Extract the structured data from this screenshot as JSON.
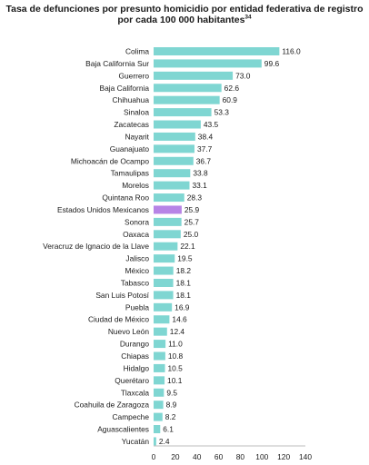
{
  "chart_data": {
    "type": "bar",
    "orientation": "horizontal",
    "title_line1": "Tasa de defunciones por presunto homicidio por entidad federativa de registro",
    "title_line2": "por cada 100 000 habitantes",
    "title_superscript": "34",
    "xlabel": "",
    "ylabel": "",
    "xlim": [
      0,
      140
    ],
    "xticks": [
      0,
      20,
      40,
      60,
      80,
      100,
      120,
      140
    ],
    "grid": false,
    "legend": "none",
    "colors": {
      "bar": "#7fd6d2",
      "highlight": "#b784e6"
    },
    "highlight_category": "Estados Unidos Mexicanos",
    "categories": [
      "Colima",
      "Baja California Sur",
      "Guerrero",
      "Baja California",
      "Chihuahua",
      "Sinaloa",
      "Zacatecas",
      "Nayarit",
      "Guanajuato",
      "Michoacán de Ocampo",
      "Tamaulipas",
      "Morelos",
      "Quintana Roo",
      "Estados Unidos Mexicanos",
      "Sonora",
      "Oaxaca",
      "Veracruz de Ignacio de la Llave",
      "Jalisco",
      "México",
      "Tabasco",
      "San Luis Potosí",
      "Puebla",
      "Ciudad de México",
      "Nuevo León",
      "Durango",
      "Chiapas",
      "Hidalgo",
      "Querétaro",
      "Tlaxcala",
      "Coahuila de Zaragoza",
      "Campeche",
      "Aguascalientes",
      "Yucatán"
    ],
    "values": [
      116.0,
      99.6,
      73.0,
      62.6,
      60.9,
      53.3,
      43.5,
      38.4,
      37.7,
      36.7,
      33.8,
      33.1,
      28.3,
      25.9,
      25.7,
      25.0,
      22.1,
      19.5,
      18.2,
      18.1,
      18.1,
      16.9,
      14.6,
      12.4,
      11.0,
      10.8,
      10.5,
      10.1,
      9.5,
      8.9,
      8.2,
      6.1,
      2.4
    ],
    "value_labels": [
      "116.0",
      "99.6",
      "73.0",
      "62.6",
      "60.9",
      "53.3",
      "43.5",
      "38.4",
      "37.7",
      "36.7",
      "33.8",
      "33.1",
      "28.3",
      "25.9",
      "25.7",
      "25.0",
      "22.1",
      "19.5",
      "18.2",
      "18.1",
      "18.1",
      "16.9",
      "14.6",
      "12.4",
      "11.0",
      "10.8",
      "10.5",
      "10.1",
      "9.5",
      "8.9",
      "8.2",
      "6.1",
      "2.4"
    ]
  }
}
